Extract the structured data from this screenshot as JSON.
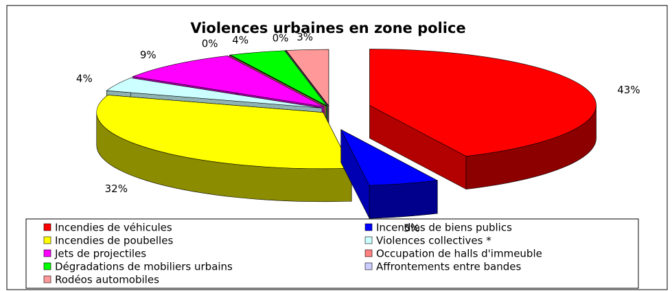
{
  "chart_data": {
    "type": "pie3d",
    "title": "Violences urbaines en zone police",
    "series": [
      {
        "name": "Incendies de véhicules",
        "color": "#ff0000",
        "values": [
          43
        ],
        "value_labels": [
          "43%"
        ]
      },
      {
        "name": "Incendies de biens publics",
        "color": "#0000ff",
        "values": [
          5
        ],
        "value_labels": [
          "5%"
        ]
      },
      {
        "name": "Incendies de poubelles",
        "color": "#ffff00",
        "values": [
          32
        ],
        "value_labels": [
          "32%"
        ]
      },
      {
        "name": "Violences collectives *",
        "color": "#ccffff",
        "values": [
          4
        ],
        "value_labels": [
          "4%"
        ]
      },
      {
        "name": "Jets de projectiles",
        "color": "#ff00ff",
        "values": [
          9
        ],
        "value_labels": [
          "9%"
        ]
      },
      {
        "name": "Occupation de halls d'immeuble",
        "color": "#ff8080",
        "values": [
          0
        ],
        "value_labels": [
          "0%"
        ]
      },
      {
        "name": "Dégradations de mobiliers urbains",
        "color": "#00ff00",
        "values": [
          4
        ],
        "value_labels": [
          "4%"
        ]
      },
      {
        "name": "Affrontements entre bandes",
        "color": "#ccccff",
        "values": [
          0
        ],
        "value_labels": [
          "0%"
        ]
      },
      {
        "name": "Rodéos automobiles",
        "color": "#ff9999",
        "values": [
          3
        ],
        "value_labels": [
          "3%"
        ]
      }
    ]
  }
}
